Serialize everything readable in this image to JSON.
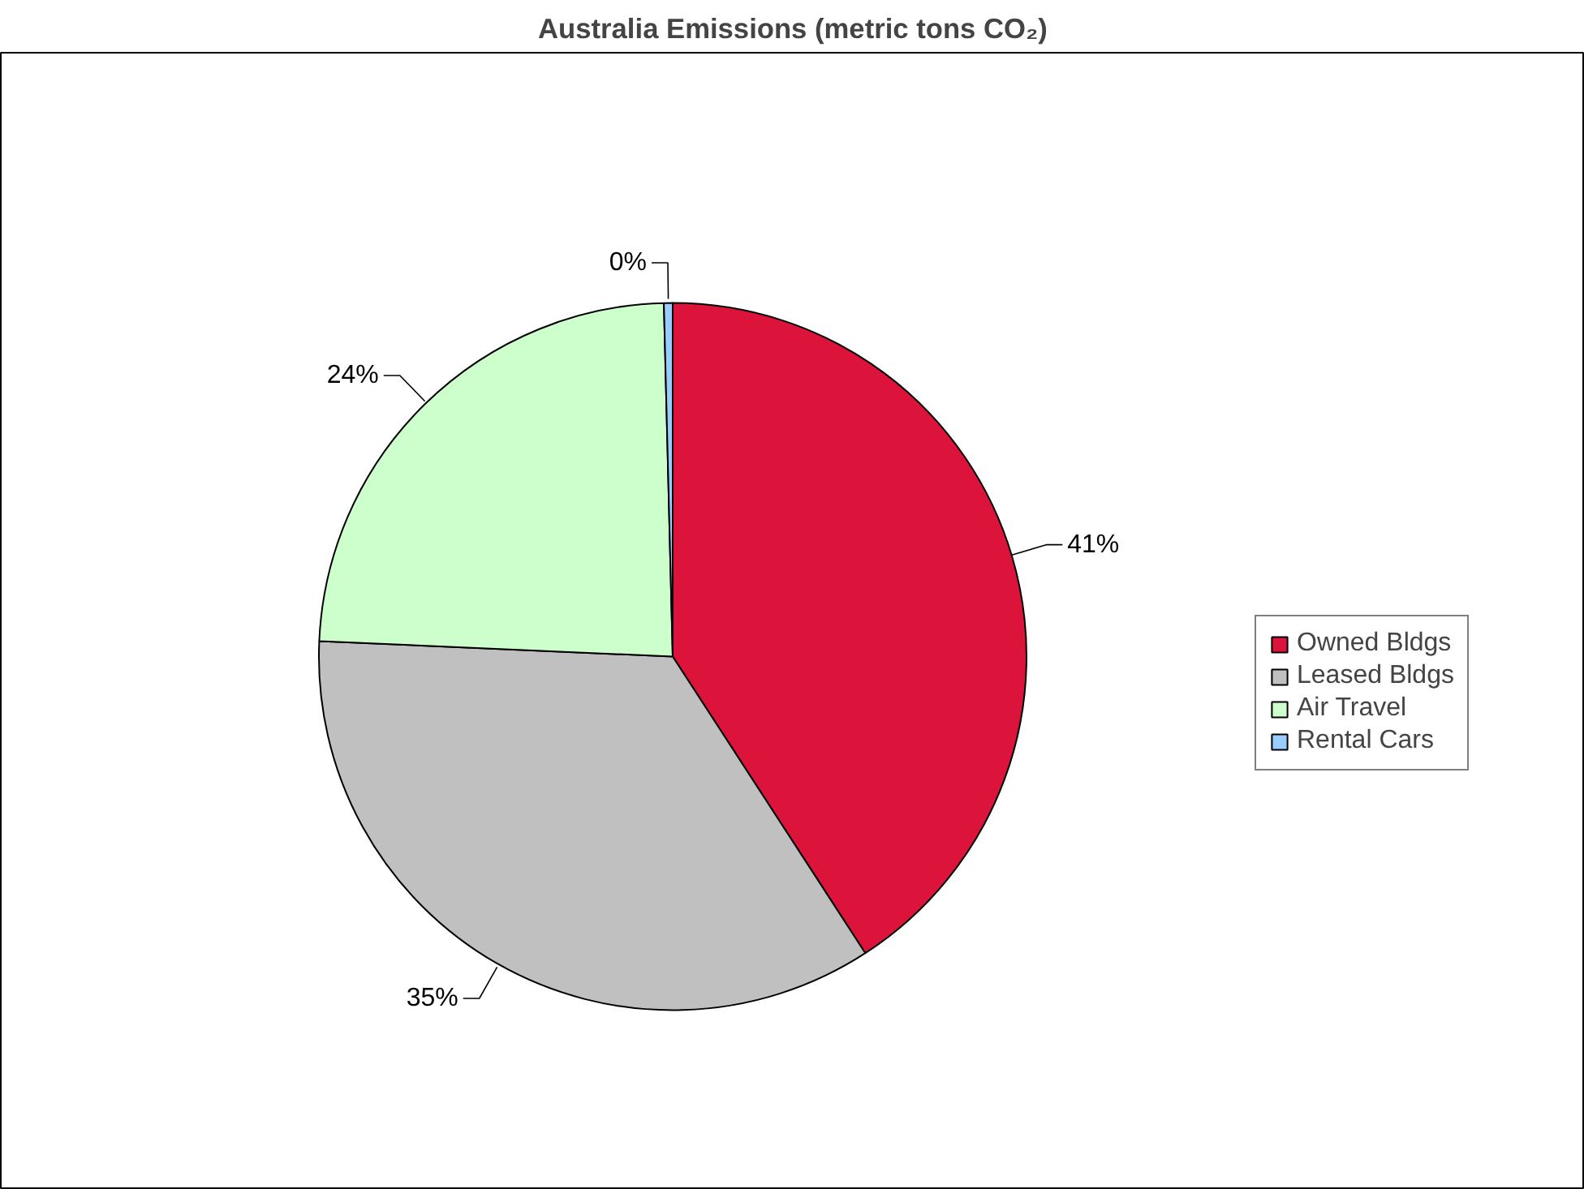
{
  "chart_data": {
    "type": "pie",
    "title": "Australia Emissions (metric tons CO₂)",
    "categories": [
      "Owned Bldgs",
      "Leased Bldgs",
      "Air Travel",
      "Rental Cars"
    ],
    "values": [
      41,
      35,
      24,
      0.4
    ],
    "value_labels": [
      "41%",
      "35%",
      "24%",
      "0%"
    ],
    "colors": [
      "#dc143c",
      "#c0c0c0",
      "#ccffcc",
      "#99ccff"
    ],
    "legend": "right"
  }
}
